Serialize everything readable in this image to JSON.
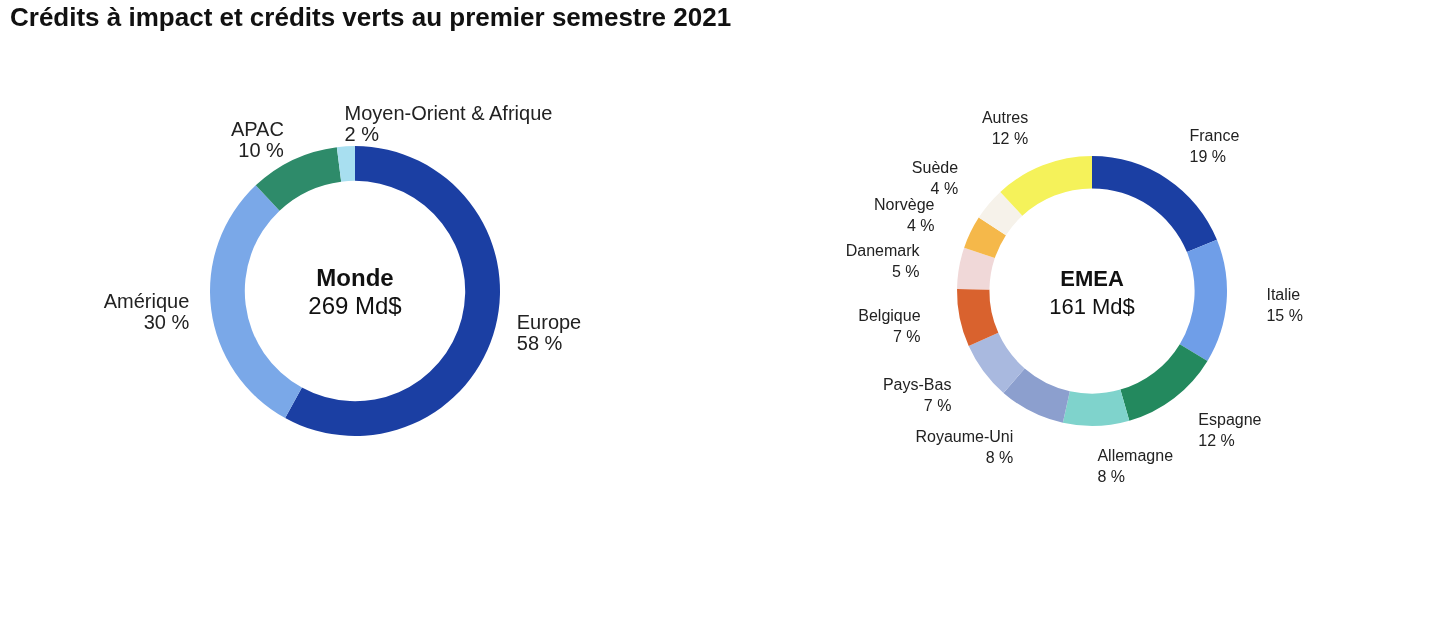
{
  "chart_data": [
    {
      "type": "donut",
      "title": "Crédits à impact et crédits verts au premier semestre 2021",
      "categories": [
        "Europe",
        "Amérique",
        "APAC",
        "Moyen-Orient & Afrique"
      ],
      "values": [
        58,
        30,
        10,
        2
      ],
      "value_labels": [
        "58 %",
        "30 %",
        "10 %",
        "2 %"
      ],
      "colors": [
        "#1b3fa3",
        "#7aa8e8",
        "#2e8b6a",
        "#a8dff0"
      ],
      "annotations": [
        "Monde",
        "269 Md$"
      ]
    },
    {
      "type": "donut",
      "categories": [
        "France",
        "Italie",
        "Espagne",
        "Allemagne",
        "Royaume-Uni",
        "Pays-Bas",
        "Belgique",
        "Danemark",
        "Norvège",
        "Suède",
        "Autres"
      ],
      "values": [
        19,
        15,
        12,
        8,
        8,
        7,
        7,
        5,
        4,
        4,
        12
      ],
      "value_labels": [
        "19 %",
        "15 %",
        "12 %",
        "8 %",
        "8 %",
        "7 %",
        "7 %",
        "5 %",
        "4 %",
        "4 %",
        "12 %"
      ],
      "colors": [
        "#1b3fa3",
        "#6f9ee8",
        "#23895e",
        "#7fd3cc",
        "#8c9fce",
        "#a9b9df",
        "#d9622e",
        "#f0d8d8",
        "#f5b84a",
        "#f6f2ea",
        "#f5f25a"
      ],
      "annotations": [
        "EMEA",
        "161 Md$"
      ]
    }
  ]
}
